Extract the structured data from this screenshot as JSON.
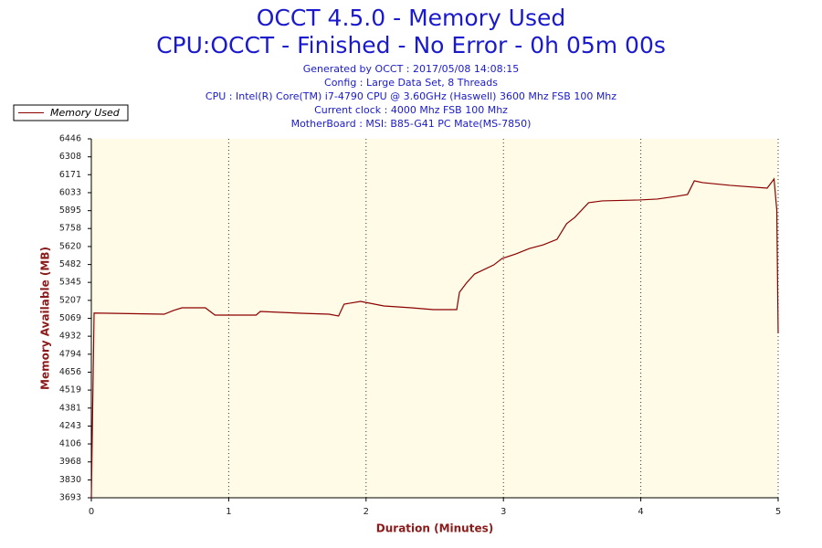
{
  "chart_data": {
    "type": "line",
    "title": "OCCT 4.5.0 - Memory Used",
    "subtitle": "CPU:OCCT - Finished - No Error - 0h 05m 00s",
    "info": [
      "Generated by OCCT : 2017/05/08 14:08:15",
      "Config : Large Data Set, 8 Threads",
      "CPU : Intel(R) Core(TM) i7-4790 CPU @ 3.60GHz (Haswell) 3600 Mhz FSB 100 Mhz",
      "Current clock : 4000 Mhz FSB 100 Mhz",
      "MotherBoard : MSI: B85-G41 PC Mate(MS-7850)"
    ],
    "x_label": "Duration (Minutes)",
    "y_label": "Memory Available (MB)",
    "xlim": [
      0,
      5
    ],
    "xticks": [
      0,
      1,
      2,
      3,
      4,
      5
    ],
    "ylim": [
      3693,
      6446
    ],
    "yticks": [
      3693,
      3830,
      3968,
      4106,
      4243,
      4381,
      4519,
      4656,
      4794,
      4932,
      5069,
      5207,
      5345,
      5482,
      5620,
      5758,
      5895,
      6033,
      6171,
      6308,
      6446
    ],
    "x_grid": true,
    "legend": "top-left",
    "series": [
      {
        "name": "Memory Used",
        "color": "#8b0000",
        "x": [
          0,
          0.02,
          0.13,
          0.53,
          0.6,
          0.66,
          0.83,
          0.9,
          1.2,
          1.23,
          1.53,
          1.73,
          1.8,
          1.84,
          1.96,
          2.13,
          2.33,
          2.49,
          2.66,
          2.68,
          2.73,
          2.79,
          2.93,
          2.99,
          3.09,
          3.19,
          3.29,
          3.39,
          3.46,
          3.52,
          3.62,
          3.72,
          3.99,
          4.12,
          4.26,
          4.34,
          4.39,
          4.45,
          4.65,
          4.92,
          4.97,
          4.99,
          5.0
        ],
        "values": [
          3693,
          5110,
          5108,
          5101,
          5130,
          5150,
          5150,
          5094,
          5094,
          5122,
          5108,
          5101,
          5087,
          5178,
          5199,
          5164,
          5150,
          5136,
          5136,
          5269,
          5339,
          5409,
          5479,
          5528,
          5563,
          5605,
          5633,
          5675,
          5795,
          5844,
          5956,
          5970,
          5977,
          5984,
          6005,
          6019,
          6124,
          6110,
          6089,
          6068,
          6138,
          5900,
          4954
        ]
      }
    ]
  }
}
